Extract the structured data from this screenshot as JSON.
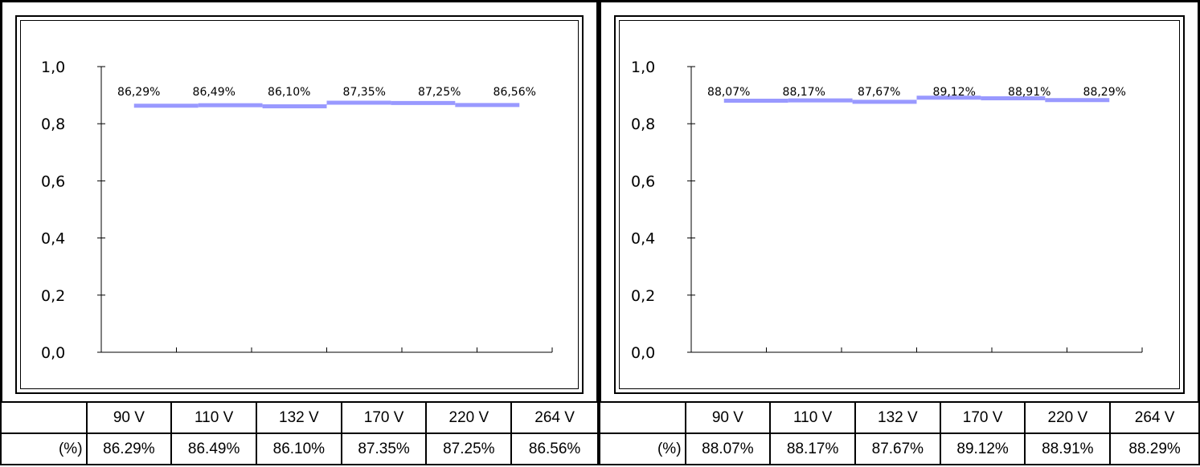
{
  "chart_data": [
    {
      "type": "line",
      "categories": [
        "90 V",
        "110 V",
        "132 V",
        "170 V",
        "220 V",
        "264 V"
      ],
      "series": [
        {
          "values": [
            0.8629,
            0.8649,
            0.861,
            0.8735,
            0.8725,
            0.8656
          ]
        }
      ],
      "data_labels": [
        "86,29%",
        "86,49%",
        "86,10%",
        "87,35%",
        "87,25%",
        "86,56%"
      ],
      "y_tick_labels": [
        "1,0",
        "0,8",
        "0,6",
        "0,4",
        "0,2",
        "0,0"
      ],
      "ylim": [
        0,
        1
      ],
      "grid": false,
      "line_color": "#9999ff",
      "title": "",
      "xlabel": "",
      "ylabel": ""
    },
    {
      "type": "line",
      "categories": [
        "90 V",
        "110 V",
        "132 V",
        "170 V",
        "220 V",
        "264 V"
      ],
      "series": [
        {
          "values": [
            0.8807,
            0.8817,
            0.8767,
            0.8912,
            0.8891,
            0.8829
          ]
        }
      ],
      "data_labels": [
        "88,07%",
        "88,17%",
        "87,67%",
        "89,12%",
        "88,91%",
        "88,29%"
      ],
      "y_tick_labels": [
        "1,0",
        "0,8",
        "0,6",
        "0,4",
        "0,2",
        "0,0"
      ],
      "ylim": [
        0,
        1
      ],
      "grid": false,
      "line_color": "#9999ff",
      "title": "",
      "xlabel": "",
      "ylabel": ""
    }
  ],
  "tables": {
    "left": {
      "header": [
        "",
        "90 V",
        "110 V",
        "132 V",
        "170 V",
        "220 V",
        "264 V"
      ],
      "row": [
        "(%)",
        "86.29%",
        "86.49%",
        "86.10%",
        "87.35%",
        "87.25%",
        "86.56%"
      ]
    },
    "right": {
      "header": [
        "",
        "90 V",
        "110 V",
        "132 V",
        "170 V",
        "220 V",
        "264 V"
      ],
      "row": [
        "(%)",
        "88.07%",
        "88.17%",
        "87.67%",
        "89.12%",
        "88.91%",
        "88.29%"
      ]
    }
  }
}
